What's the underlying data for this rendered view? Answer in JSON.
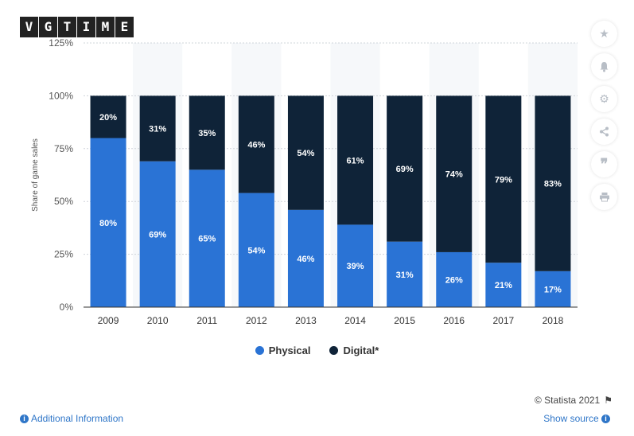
{
  "watermark": {
    "letters": [
      "V",
      "G",
      "T",
      "I",
      "M",
      "E"
    ]
  },
  "colors": {
    "physical": "#2a73d5",
    "digital": "#0f2338",
    "band": "#f6f8fa",
    "axis_text": "#555555"
  },
  "chart_data": {
    "type": "stacked_bar",
    "categories": [
      "2009",
      "2010",
      "2011",
      "2012",
      "2013",
      "2014",
      "2015",
      "2016",
      "2017",
      "2018"
    ],
    "series": [
      {
        "name": "Physical",
        "values": [
          80,
          69,
          65,
          54,
          46,
          39,
          31,
          26,
          21,
          17
        ]
      },
      {
        "name": "Digital*",
        "values": [
          20,
          31,
          35,
          46,
          54,
          61,
          69,
          74,
          79,
          83
        ]
      }
    ],
    "data_labels": {
      "Physical": [
        "80%",
        "69%",
        "65%",
        "54%",
        "46%",
        "39%",
        "31%",
        "26%",
        "21%",
        "17%"
      ],
      "Digital*": [
        "20%",
        "31%",
        "35%",
        "46%",
        "54%",
        "61%",
        "69%",
        "74%",
        "79%",
        "83%"
      ]
    },
    "ylabel": "Share of game sales",
    "ylim": [
      0,
      125
    ],
    "yticks": [
      0,
      25,
      50,
      75,
      100,
      125
    ],
    "ytick_labels": [
      "0%",
      "25%",
      "50%",
      "75%",
      "100%",
      "125%"
    ],
    "legend_position": "bottom-center"
  },
  "legend": {
    "items": [
      {
        "label": "Physical"
      },
      {
        "label": "Digital*"
      }
    ]
  },
  "toolbar": {
    "icons": [
      "star-icon",
      "bell-icon",
      "gear-icon",
      "share-icon",
      "quote-icon",
      "print-icon"
    ]
  },
  "footer": {
    "info": "Additional Information",
    "source": "Show source",
    "copyright": "© Statista 2021"
  }
}
